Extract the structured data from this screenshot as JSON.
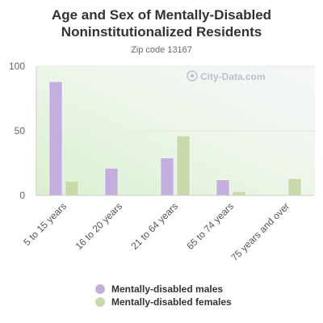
{
  "chart_data": {
    "type": "bar",
    "title": "Age and Sex of Mentally-Disabled Noninstitutionalized Residents",
    "subtitle": "Zip code 13167",
    "categories": [
      "5 to 15 years",
      "16 to 20 years",
      "21 to 64 years",
      "65 to 74 years",
      "75 years and over"
    ],
    "series": [
      {
        "name": "Mentally-disabled males",
        "color": "#c3aedd",
        "values": [
          88,
          21,
          29,
          12,
          0
        ]
      },
      {
        "name": "Mentally-disabled females",
        "color": "#c9d9a9",
        "values": [
          11,
          0,
          46,
          3,
          13
        ]
      }
    ],
    "yticks": [
      0,
      50,
      100
    ],
    "ylim": [
      0,
      100
    ],
    "grid": true,
    "legend_position": "bottom"
  },
  "watermark": {
    "text": "City-Data.com"
  }
}
